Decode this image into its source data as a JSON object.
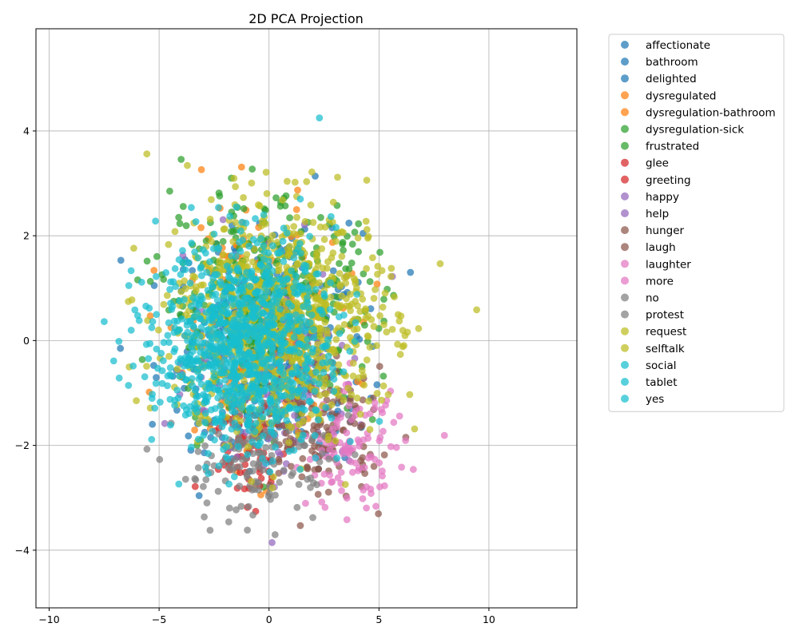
{
  "chart_data": {
    "type": "scatter",
    "title": "2D PCA Projection",
    "xlabel": "",
    "ylabel": "",
    "xlim": [
      -10.6,
      14.0
    ],
    "ylim": [
      -5.1,
      5.95
    ],
    "xticks": [
      -10,
      -5,
      0,
      5,
      10
    ],
    "yticks": [
      -4,
      -2,
      0,
      2,
      4
    ],
    "grid": true,
    "legend_position": "outside-right",
    "point_alpha": 0.72,
    "series": [
      {
        "name": "affectionate",
        "color": "#1f77b4",
        "center": [
          0.0,
          0.0
        ],
        "spread": [
          3.4,
          1.7
        ],
        "count": 90
      },
      {
        "name": "bathroom",
        "color": "#1f77b4",
        "center": [
          0.5,
          0.0
        ],
        "spread": [
          3.6,
          1.8
        ],
        "count": 90
      },
      {
        "name": "delighted",
        "color": "#1f77b4",
        "center": [
          -1.0,
          -0.3
        ],
        "spread": [
          3.4,
          1.8
        ],
        "count": 110
      },
      {
        "name": "dysregulated",
        "color": "#ff7f0e",
        "center": [
          -0.8,
          0.4
        ],
        "spread": [
          3.0,
          1.7
        ],
        "count": 100
      },
      {
        "name": "dysregulation-bathroom",
        "color": "#ff7f0e",
        "center": [
          -0.5,
          0.0
        ],
        "spread": [
          3.0,
          1.8
        ],
        "count": 90
      },
      {
        "name": "dysregulation-sick",
        "color": "#2ca02c",
        "center": [
          -0.5,
          0.8
        ],
        "spread": [
          3.8,
          1.5
        ],
        "count": 160
      },
      {
        "name": "frustrated",
        "color": "#2ca02c",
        "center": [
          0.5,
          0.5
        ],
        "spread": [
          3.6,
          1.6
        ],
        "count": 160
      },
      {
        "name": "glee",
        "color": "#d62728",
        "center": [
          -1.0,
          -1.8
        ],
        "spread": [
          1.6,
          0.9
        ],
        "count": 35
      },
      {
        "name": "greeting",
        "color": "#d62728",
        "center": [
          -0.8,
          -2.2
        ],
        "spread": [
          1.4,
          0.9
        ],
        "count": 35
      },
      {
        "name": "happy",
        "color": "#9467bd",
        "center": [
          0.0,
          -0.5
        ],
        "spread": [
          3.0,
          1.6
        ],
        "count": 70
      },
      {
        "name": "help",
        "color": "#9467bd",
        "center": [
          1.0,
          -0.5
        ],
        "spread": [
          3.0,
          1.6
        ],
        "count": 70
      },
      {
        "name": "hunger",
        "color": "#8c564b",
        "center": [
          2.0,
          -1.5
        ],
        "spread": [
          2.4,
          1.1
        ],
        "count": 80
      },
      {
        "name": "laugh",
        "color": "#8c564b",
        "center": [
          2.5,
          -1.8
        ],
        "spread": [
          2.2,
          1.0
        ],
        "count": 70
      },
      {
        "name": "laughter",
        "color": "#e377c2",
        "center": [
          3.5,
          -2.2
        ],
        "spread": [
          1.6,
          0.8
        ],
        "count": 60
      },
      {
        "name": "more",
        "color": "#e377c2",
        "center": [
          4.0,
          -2.0
        ],
        "spread": [
          1.8,
          0.9
        ],
        "count": 50
      },
      {
        "name": "no",
        "color": "#7f7f7f",
        "center": [
          -1.5,
          -2.5
        ],
        "spread": [
          2.2,
          0.9
        ],
        "count": 70
      },
      {
        "name": "protest",
        "color": "#7f7f7f",
        "center": [
          0.5,
          -2.3
        ],
        "spread": [
          2.6,
          1.0
        ],
        "count": 60
      },
      {
        "name": "request",
        "color": "#bcbd22",
        "center": [
          1.0,
          0.5
        ],
        "spread": [
          3.8,
          1.7
        ],
        "count": 420
      },
      {
        "name": "selftalk",
        "color": "#bcbd22",
        "center": [
          0.0,
          0.2
        ],
        "spread": [
          3.8,
          1.7
        ],
        "count": 420
      },
      {
        "name": "social",
        "color": "#17becf",
        "center": [
          -1.5,
          0.0
        ],
        "spread": [
          3.2,
          1.6
        ],
        "count": 320
      },
      {
        "name": "tablet",
        "color": "#17becf",
        "center": [
          -1.0,
          0.0
        ],
        "spread": [
          3.2,
          1.6
        ],
        "count": 320
      },
      {
        "name": "yes",
        "color": "#17becf",
        "center": [
          -1.0,
          -0.2
        ],
        "spread": [
          3.2,
          1.6
        ],
        "count": 300
      }
    ]
  }
}
